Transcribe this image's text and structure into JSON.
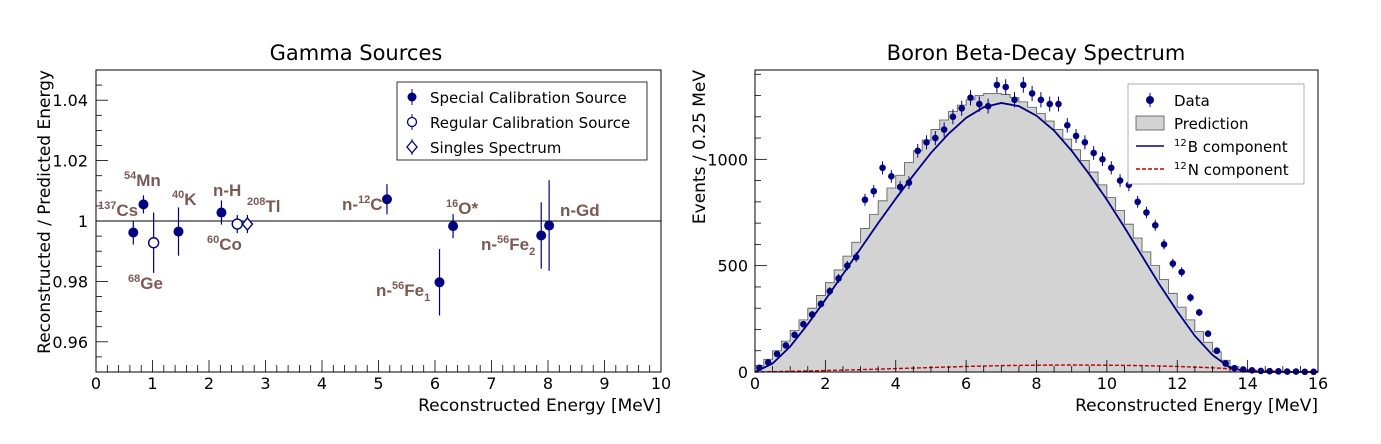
{
  "chart_data": [
    {
      "type": "scatter",
      "title": "Gamma Sources",
      "xlabel": "Reconstructed Energy [MeV]",
      "ylabel": "Reconstructed / Predicted Energy",
      "xlim": [
        0,
        10
      ],
      "ylim": [
        0.95,
        1.05
      ],
      "xticks": [
        "0",
        "1",
        "2",
        "3",
        "4",
        "5",
        "6",
        "7",
        "8",
        "9",
        "10"
      ],
      "yticks": [
        "0.96",
        "0.98",
        "1",
        "1.02",
        "1.04"
      ],
      "reference_line": 1,
      "legend": {
        "position": "top-right",
        "entries": [
          {
            "label": "Special Calibration Source",
            "marker": "filled-circle"
          },
          {
            "label": "Regular Calibration Source",
            "marker": "open-circle"
          },
          {
            "label": "Singles Spectrum",
            "marker": "open-diamond"
          }
        ]
      },
      "series": [
        {
          "name": "Special Calibration Source",
          "marker": "filled-circle",
          "points": [
            {
              "x": 0.66,
              "y": 0.9962,
              "err": 0.004
            },
            {
              "x": 0.84,
              "y": 1.0055,
              "err": 0.003
            },
            {
              "x": 1.46,
              "y": 0.9965,
              "err": 0.008
            },
            {
              "x": 2.22,
              "y": 1.0028,
              "err": 0.004
            },
            {
              "x": 5.15,
              "y": 1.0072,
              "err": 0.005
            },
            {
              "x": 6.08,
              "y": 0.9797,
              "err": 0.011
            },
            {
              "x": 6.32,
              "y": 0.9983,
              "err": 0.004
            },
            {
              "x": 7.88,
              "y": 0.9952,
              "err": 0.011
            },
            {
              "x": 8.02,
              "y": 0.9985,
              "err": 0.015
            }
          ]
        },
        {
          "name": "Regular Calibration Source",
          "marker": "open-circle",
          "points": [
            {
              "x": 1.02,
              "y": 0.9928,
              "err": 0.01
            },
            {
              "x": 2.5,
              "y": 0.999,
              "err": 0.003
            }
          ]
        },
        {
          "name": "Singles Spectrum",
          "marker": "open-diamond",
          "points": [
            {
              "x": 2.68,
              "y": 0.999,
              "err": 0.003
            }
          ]
        }
      ],
      "annotations": [
        {
          "sup": "137",
          "text": "Cs"
        },
        {
          "sup": "54",
          "text": "Mn"
        },
        {
          "sup": "68",
          "text": "Ge"
        },
        {
          "sup": "40",
          "text": "K"
        },
        {
          "text": "n-H"
        },
        {
          "sup": "60",
          "text": "Co"
        },
        {
          "sup": "208",
          "text": "Tl"
        },
        {
          "pre": "n-",
          "sup": "12",
          "text": "C"
        },
        {
          "sup": "16",
          "text": "O*"
        },
        {
          "pre": "n-",
          "sup": "56",
          "text": "Fe",
          "sub": "1"
        },
        {
          "pre": "n-",
          "sup": "56",
          "text": "Fe",
          "sub": "2"
        },
        {
          "text": "n-Gd"
        }
      ]
    },
    {
      "type": "histogram",
      "title": "Boron Beta-Decay Spectrum",
      "xlabel": "Reconstructed Energy [MeV]",
      "ylabel": "Events / 0.25 MeV",
      "xlim": [
        0,
        16
      ],
      "ylim": [
        0,
        1420
      ],
      "xticks": [
        "0",
        "2",
        "4",
        "6",
        "8",
        "10",
        "12",
        "14",
        "16"
      ],
      "yticks": [
        "0",
        "500",
        "1000"
      ],
      "bin_width": 0.25,
      "legend": {
        "position": "top-right",
        "entries": [
          {
            "label": "Data",
            "marker": "filled-circle"
          },
          {
            "label": "Prediction",
            "marker": "grey-box"
          },
          {
            "label_sup": "12",
            "label": "B component",
            "marker": "solid-blue-line"
          },
          {
            "label_sup": "12",
            "label": "N component",
            "marker": "dashed-red-line"
          }
        ]
      },
      "series": [
        {
          "name": "Data",
          "x": [
            0.125,
            0.375,
            0.625,
            0.875,
            1.125,
            1.375,
            1.625,
            1.875,
            2.125,
            2.375,
            2.625,
            2.875,
            3.125,
            3.375,
            3.625,
            3.875,
            4.125,
            4.375,
            4.625,
            4.875,
            5.125,
            5.375,
            5.625,
            5.875,
            6.125,
            6.375,
            6.625,
            6.875,
            7.125,
            7.375,
            7.625,
            7.875,
            8.125,
            8.375,
            8.625,
            8.875,
            9.125,
            9.375,
            9.625,
            9.875,
            10.125,
            10.375,
            10.625,
            10.875,
            11.125,
            11.375,
            11.625,
            11.875,
            12.125,
            12.375,
            12.625,
            12.875,
            13.125,
            13.375,
            13.625,
            13.875,
            14.125,
            14.375,
            14.625,
            14.875,
            15.125,
            15.375,
            15.625,
            15.875
          ],
          "values": [
            20,
            45,
            85,
            125,
            175,
            225,
            270,
            320,
            380,
            440,
            500,
            540,
            810,
            850,
            960,
            920,
            870,
            890,
            1040,
            1080,
            1100,
            1140,
            1200,
            1240,
            1290,
            1260,
            1250,
            1350,
            1340,
            1280,
            1350,
            1310,
            1280,
            1260,
            1260,
            1160,
            1110,
            1080,
            1030,
            1000,
            960,
            900,
            880,
            800,
            750,
            690,
            600,
            510,
            470,
            350,
            280,
            180,
            100,
            40,
            18,
            12,
            8,
            5,
            4,
            3,
            2,
            2,
            1,
            1
          ],
          "errors": [
            5,
            7,
            9,
            11,
            13,
            15,
            16,
            18,
            19,
            21,
            22,
            23,
            28,
            29,
            31,
            30,
            29,
            30,
            32,
            33,
            33,
            34,
            35,
            35,
            36,
            36,
            35,
            37,
            37,
            36,
            37,
            36,
            36,
            35,
            35,
            34,
            33,
            33,
            32,
            32,
            31,
            30,
            30,
            28,
            27,
            26,
            24,
            23,
            22,
            19,
            17,
            13,
            10,
            6,
            4,
            3,
            3,
            2,
            2,
            2,
            1,
            1,
            1,
            1
          ]
        },
        {
          "name": "Prediction",
          "x": [
            0.125,
            0.375,
            0.625,
            0.875,
            1.125,
            1.375,
            1.625,
            1.875,
            2.125,
            2.375,
            2.625,
            2.875,
            3.125,
            3.375,
            3.625,
            3.875,
            4.125,
            4.375,
            4.625,
            4.875,
            5.125,
            5.375,
            5.625,
            5.875,
            6.125,
            6.375,
            6.625,
            6.875,
            7.125,
            7.375,
            7.625,
            7.875,
            8.125,
            8.375,
            8.625,
            8.875,
            9.125,
            9.375,
            9.625,
            9.875,
            10.125,
            10.375,
            10.625,
            10.875,
            11.125,
            11.375,
            11.625,
            11.875,
            12.125,
            12.375,
            12.625,
            12.875,
            13.125,
            13.375,
            13.625,
            13.875,
            14.125,
            14.375,
            14.625,
            14.875,
            15.125,
            15.375,
            15.625,
            15.875
          ],
          "values": [
            30,
            60,
            100,
            145,
            195,
            245,
            300,
            360,
            420,
            480,
            545,
            610,
            675,
            740,
            805,
            865,
            925,
            985,
            1040,
            1090,
            1140,
            1185,
            1225,
            1255,
            1280,
            1300,
            1310,
            1310,
            1305,
            1290,
            1270,
            1245,
            1215,
            1180,
            1140,
            1095,
            1045,
            995,
            940,
            880,
            820,
            760,
            695,
            630,
            565,
            500,
            435,
            370,
            305,
            245,
            190,
            140,
            95,
            55,
            25,
            10,
            4,
            2,
            1,
            0,
            0,
            0,
            0,
            0
          ]
        },
        {
          "name": "12B component",
          "x": [
            0,
            0.5,
            1,
            1.5,
            2,
            2.5,
            3,
            3.5,
            4,
            4.5,
            5,
            5.5,
            6,
            6.5,
            7,
            7.5,
            8,
            8.5,
            9,
            9.5,
            10,
            10.5,
            11,
            11.5,
            12,
            12.5,
            13,
            13.5,
            14,
            14.5,
            15,
            15.5,
            16
          ],
          "values": [
            0,
            40,
            120,
            225,
            340,
            460,
            580,
            700,
            815,
            925,
            1030,
            1120,
            1195,
            1245,
            1265,
            1250,
            1205,
            1135,
            1040,
            930,
            810,
            680,
            545,
            410,
            285,
            170,
            80,
            20,
            2,
            0,
            0,
            0,
            0
          ]
        },
        {
          "name": "12N component",
          "x": [
            0,
            1,
            2,
            3,
            4,
            5,
            6,
            7,
            8,
            9,
            10,
            11,
            12,
            13,
            14,
            15,
            16
          ],
          "values": [
            0,
            3,
            7,
            11,
            16,
            21,
            26,
            30,
            32,
            33,
            32,
            30,
            26,
            20,
            10,
            2,
            0
          ]
        }
      ]
    }
  ]
}
